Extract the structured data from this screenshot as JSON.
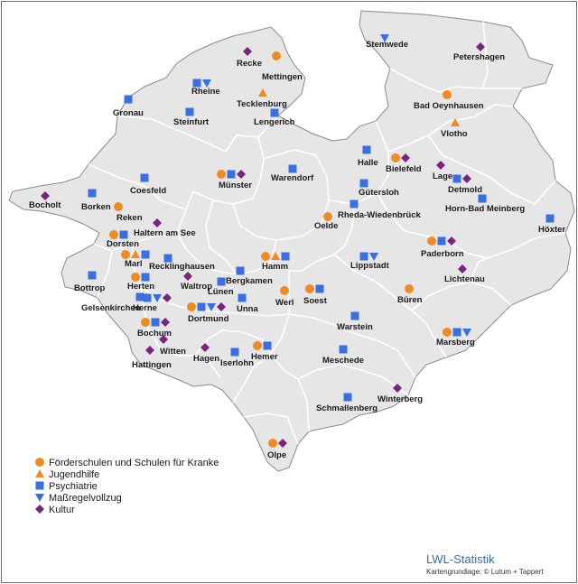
{
  "colors": {
    "land": "#e6e6e6",
    "border": "#ffffff",
    "outline": "#8a8a8a",
    "foerderschulen": "#f08a24",
    "jugendhilfe": "#f08a24",
    "psychiatrie": "#3a6fe0",
    "massregelvollzug": "#3a6fe0",
    "kultur": "#7a2480"
  },
  "legend": [
    {
      "key": "foerderschulen",
      "shape": "circle",
      "label": "Förderschulen und Schulen für Kranke"
    },
    {
      "key": "jugendhilfe",
      "shape": "triangle",
      "label": "Jugendhilfe"
    },
    {
      "key": "psychiatrie",
      "shape": "square",
      "label": "Psychiatrie"
    },
    {
      "key": "massregelvollzug",
      "shape": "triangle-down",
      "label": "Maßregelvollzug"
    },
    {
      "key": "kultur",
      "shape": "diamond",
      "label": "Kultur"
    }
  ],
  "brand": "LWL-Statistik",
  "credit": "Kartengrundlage: © Lutum + Tappert",
  "places": [
    {
      "name": "Stemwede",
      "types": [
        "massregelvollzug"
      ]
    },
    {
      "name": "Petershagen",
      "types": [
        "kultur"
      ]
    },
    {
      "name": "Recke",
      "types": [
        "kultur"
      ]
    },
    {
      "name": "Mettingen",
      "types": [
        "foerderschulen"
      ]
    },
    {
      "name": "Rheine",
      "types": [
        "psychiatrie",
        "massregelvollzug"
      ]
    },
    {
      "name": "Tecklenburg",
      "types": [
        "jugendhilfe"
      ]
    },
    {
      "name": "Gronau",
      "types": [
        "psychiatrie"
      ]
    },
    {
      "name": "Steinfurt",
      "types": [
        "psychiatrie"
      ]
    },
    {
      "name": "Lengerich",
      "types": [
        "psychiatrie"
      ]
    },
    {
      "name": "Bad Oeynhausen",
      "types": [
        "foerderschulen"
      ]
    },
    {
      "name": "Vlotho",
      "types": [
        "jugendhilfe"
      ]
    },
    {
      "name": "Halle",
      "types": [
        "psychiatrie"
      ]
    },
    {
      "name": "Bielefeld",
      "types": [
        "foerderschulen",
        "kultur"
      ]
    },
    {
      "name": "Lage",
      "types": [
        "kultur"
      ]
    },
    {
      "name": "Detmold",
      "types": [
        "psychiatrie",
        "kultur"
      ]
    },
    {
      "name": "Münster",
      "types": [
        "foerderschulen",
        "psychiatrie",
        "kultur"
      ]
    },
    {
      "name": "Warendorf",
      "types": [
        "psychiatrie"
      ]
    },
    {
      "name": "Coesfeld",
      "types": [
        "psychiatrie"
      ]
    },
    {
      "name": "Gütersloh",
      "types": [
        "psychiatrie"
      ]
    },
    {
      "name": "Horn-Bad Meinberg",
      "types": [
        "psychiatrie"
      ]
    },
    {
      "name": "Bocholt",
      "types": [
        "kultur"
      ]
    },
    {
      "name": "Borken",
      "types": [
        "psychiatrie"
      ]
    },
    {
      "name": "Reken",
      "types": [
        "foerderschulen"
      ]
    },
    {
      "name": "Rheda-Wiedenbrück",
      "types": [
        "psychiatrie"
      ]
    },
    {
      "name": "Oelde",
      "types": [
        "foerderschulen"
      ]
    },
    {
      "name": "Höxter",
      "types": [
        "psychiatrie"
      ]
    },
    {
      "name": "Haltern am See",
      "types": [
        "kultur"
      ]
    },
    {
      "name": "Dorsten",
      "types": [
        "foerderschulen",
        "psychiatrie"
      ]
    },
    {
      "name": "Paderborn",
      "types": [
        "foerderschulen",
        "psychiatrie",
        "kultur"
      ]
    },
    {
      "name": "Marl",
      "types": [
        "foerderschulen",
        "jugendhilfe",
        "psychiatrie"
      ]
    },
    {
      "name": "Recklinghausen",
      "types": [
        "psychiatrie"
      ]
    },
    {
      "name": "Hamm",
      "types": [
        "foerderschulen",
        "jugendhilfe",
        "psychiatrie"
      ]
    },
    {
      "name": "Lippstadt",
      "types": [
        "psychiatrie",
        "massregelvollzug"
      ]
    },
    {
      "name": "Herten",
      "types": [
        "foerderschulen",
        "psychiatrie"
      ]
    },
    {
      "name": "Bergkamen",
      "types": [
        "psychiatrie"
      ]
    },
    {
      "name": "Lichtenau",
      "types": [
        "kultur"
      ]
    },
    {
      "name": "Bottrop",
      "types": [
        "psychiatrie"
      ]
    },
    {
      "name": "Waltrop",
      "types": [
        "kultur"
      ]
    },
    {
      "name": "Lünen",
      "types": [
        "psychiatrie"
      ]
    },
    {
      "name": "Werl",
      "types": [
        "foerderschulen"
      ]
    },
    {
      "name": "Soest",
      "types": [
        "foerderschulen",
        "psychiatrie"
      ]
    },
    {
      "name": "Büren",
      "types": [
        "foerderschulen"
      ]
    },
    {
      "name": "Herne",
      "types": [
        "psychiatrie",
        "massregelvollzug",
        "kultur"
      ]
    },
    {
      "name": "Gelsenkirchen",
      "types": [
        "psychiatrie"
      ]
    },
    {
      "name": "Dortmund",
      "types": [
        "foerderschulen",
        "psychiatrie",
        "massregelvollzug",
        "kultur"
      ]
    },
    {
      "name": "Unna",
      "types": [
        "psychiatrie"
      ]
    },
    {
      "name": "Bochum",
      "types": [
        "foerderschulen",
        "psychiatrie",
        "kultur"
      ]
    },
    {
      "name": "Warstein",
      "types": [
        "psychiatrie"
      ]
    },
    {
      "name": "Marsberg",
      "types": [
        "foerderschulen",
        "psychiatrie",
        "massregelvollzug"
      ]
    },
    {
      "name": "Witten",
      "types": [
        "kultur"
      ]
    },
    {
      "name": "Hattingen",
      "types": [
        "kultur"
      ]
    },
    {
      "name": "Hagen",
      "types": [
        "kultur"
      ]
    },
    {
      "name": "Iserlohn",
      "types": [
        "psychiatrie"
      ]
    },
    {
      "name": "Hemer",
      "types": [
        "foerderschulen",
        "psychiatrie"
      ]
    },
    {
      "name": "Meschede",
      "types": [
        "psychiatrie"
      ]
    },
    {
      "name": "Winterberg",
      "types": [
        "kultur"
      ]
    },
    {
      "name": "Schmallenberg",
      "types": [
        "psychiatrie"
      ]
    },
    {
      "name": "Olpe",
      "types": [
        "foerderschulen",
        "kultur"
      ]
    }
  ]
}
